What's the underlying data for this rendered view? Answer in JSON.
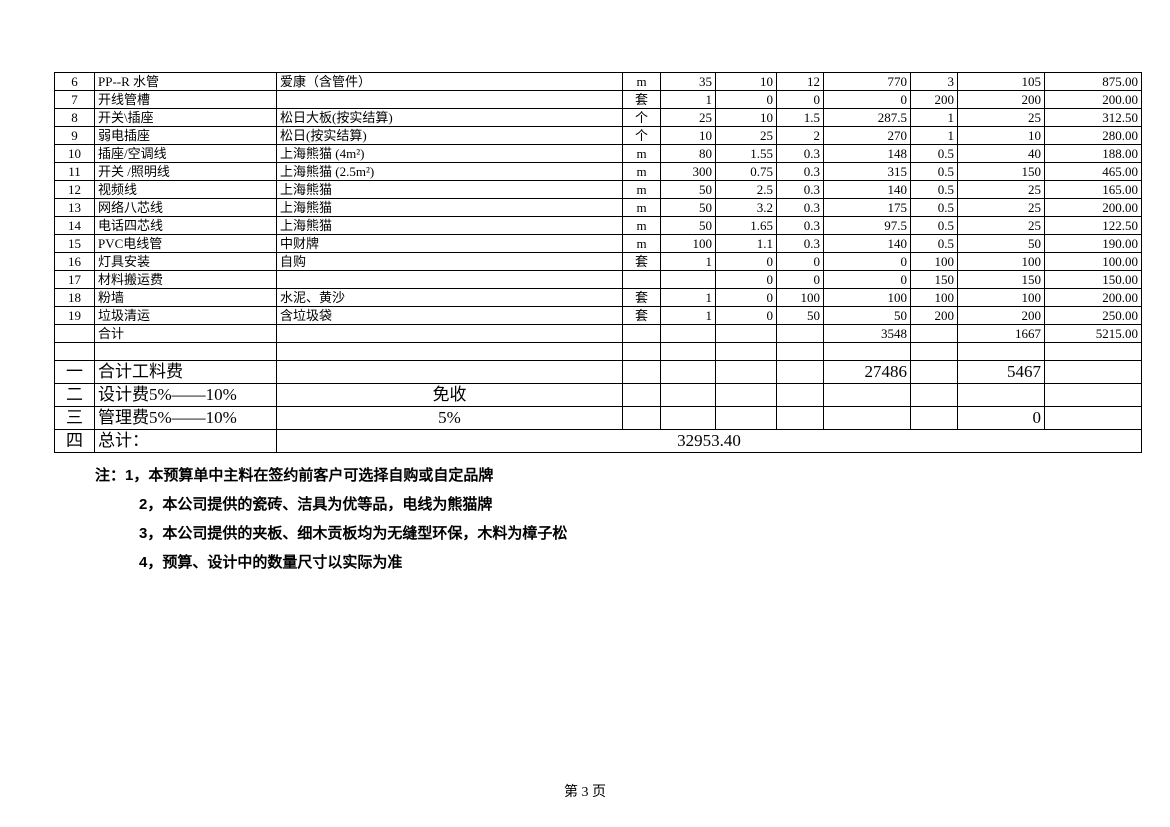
{
  "columns": [
    "c0",
    "c1",
    "c2",
    "c3",
    "c4",
    "c5",
    "c6",
    "c7",
    "c8",
    "c9",
    "c10"
  ],
  "rows": [
    [
      "6",
      "PP--R 水管",
      "爱康（含管件）",
      "m",
      "35",
      "10",
      "12",
      "770",
      "3",
      "105",
      "875.00"
    ],
    [
      "7",
      "开线管槽",
      "",
      "套",
      "1",
      "0",
      "0",
      "0",
      "200",
      "200",
      "200.00"
    ],
    [
      "8",
      "开关\\插座",
      "松日大板(按实结算)",
      "个",
      "25",
      "10",
      "1.5",
      "287.5",
      "1",
      "25",
      "312.50"
    ],
    [
      "9",
      "弱电插座",
      "松日(按实结算)",
      "个",
      "10",
      "25",
      "2",
      "270",
      "1",
      "10",
      "280.00"
    ],
    [
      "10",
      "插座/空调线",
      "上海熊猫 (4m²)",
      "m",
      "80",
      "1.55",
      "0.3",
      "148",
      "0.5",
      "40",
      "188.00"
    ],
    [
      "11",
      "开关 /照明线",
      "上海熊猫 (2.5m²)",
      "m",
      "300",
      "0.75",
      "0.3",
      "315",
      "0.5",
      "150",
      "465.00"
    ],
    [
      "12",
      "视频线",
      "上海熊猫",
      "m",
      "50",
      "2.5",
      "0.3",
      "140",
      "0.5",
      "25",
      "165.00"
    ],
    [
      "13",
      "网络八芯线",
      "上海熊猫",
      "m",
      "50",
      "3.2",
      "0.3",
      "175",
      "0.5",
      "25",
      "200.00"
    ],
    [
      "14",
      "电话四芯线",
      "上海熊猫",
      "m",
      "50",
      "1.65",
      "0.3",
      "97.5",
      "0.5",
      "25",
      "122.50"
    ],
    [
      "15",
      "PVC电线管",
      "中财牌",
      "m",
      "100",
      "1.1",
      "0.3",
      "140",
      "0.5",
      "50",
      "190.00"
    ],
    [
      "16",
      "灯具安装",
      "自购",
      "套",
      "1",
      "0",
      "0",
      "0",
      "100",
      "100",
      "100.00"
    ],
    [
      "17",
      "材料搬运费",
      "",
      "",
      "",
      "0",
      "0",
      "0",
      "150",
      "150",
      "150.00"
    ],
    [
      "18",
      "粉墙",
      "水泥、黄沙",
      "套",
      "1",
      "0",
      "100",
      "100",
      "100",
      "100",
      "200.00"
    ],
    [
      "19",
      "垃圾清运",
      "含垃圾袋",
      "套",
      "1",
      "0",
      "50",
      "50",
      "200",
      "200",
      "250.00"
    ],
    [
      "",
      "合计",
      "",
      "",
      "",
      "",
      "",
      "3548",
      "",
      "1667",
      "5215.00"
    ]
  ],
  "blank_row": [
    "",
    "",
    "",
    "",
    "",
    "",
    "",
    "",
    "",
    "",
    ""
  ],
  "summary": {
    "h1": {
      "idx": "一",
      "label": "合计工料费",
      "c2": "",
      "v7": "27486",
      "v9": "5467",
      "v10": ""
    },
    "h2": {
      "idx": "二",
      "label": "设计费5%——10%",
      "c2": "免收",
      "v7": "",
      "v9": "",
      "v10": ""
    },
    "h3": {
      "idx": "三",
      "label": "管理费5%——10%",
      "c2": "5%",
      "v7": "",
      "v9": "0",
      "v10": ""
    },
    "h4": {
      "idx": "四",
      "label": "总计：",
      "total": "32953.40"
    }
  },
  "notes": [
    "注：1，本预算单中主料在签约前客户可选择自购或自定品牌",
    "2，本公司提供的瓷砖、洁具为优等品，电线为熊猫牌",
    "3，本公司提供的夹板、细木贡板均为无缝型环保，木料为樟子松",
    "4，预算、设计中的数量尺寸以实际为准"
  ],
  "footer": "第 3 页"
}
